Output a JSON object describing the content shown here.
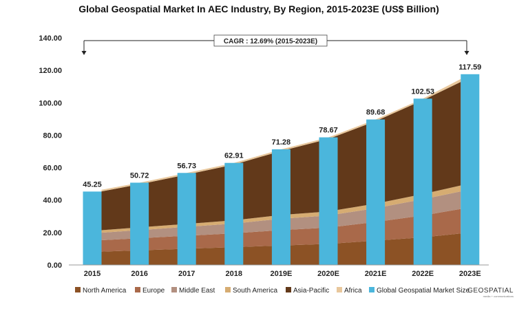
{
  "title": "Global Geospatial Market In AEC Industry, By Region, 2015-2023E (US$ Billion)",
  "cagr_label": "CAGR : 12.69% (2015-2023E)",
  "logo": {
    "main": "GEOSPATIAL",
    "sub": "media + communications"
  },
  "colors": {
    "north_america": "#8c5225",
    "europe": "#a9694a",
    "middle_east": "#b29080",
    "south_america": "#d6ac72",
    "asia_pacific": "#62391a",
    "africa": "#e8c79c",
    "bar": "#4bb6dc"
  },
  "chart_data": {
    "type": "bar+stacked-area",
    "categories": [
      "2015",
      "2016",
      "2017",
      "2018",
      "2019E",
      "2020E",
      "2021E",
      "2022E",
      "2023E"
    ],
    "ylim": [
      0,
      140
    ],
    "yticks": [
      "0.00",
      "20.00",
      "40.00",
      "60.00",
      "80.00",
      "100.00",
      "120.00",
      "140.00"
    ],
    "bar_series": {
      "name": "Global Geospatial Market Size",
      "values": [
        45.25,
        50.72,
        56.73,
        62.91,
        71.28,
        78.67,
        89.68,
        102.53,
        117.59
      ],
      "labels": [
        "45.25",
        "50.72",
        "56.73",
        "62.91",
        "71.28",
        "78.67",
        "89.68",
        "102.53",
        "117.59"
      ]
    },
    "area_series": [
      {
        "name": "North America",
        "color_key": "north_america",
        "values": [
          8,
          9,
          10,
          11,
          12,
          13,
          15,
          17,
          20
        ]
      },
      {
        "name": "Europe",
        "color_key": "europe",
        "values": [
          7,
          7.5,
          8,
          8.5,
          9.5,
          10,
          11.5,
          13.5,
          15.5
        ]
      },
      {
        "name": "Middle East",
        "color_key": "middle_east",
        "values": [
          4.5,
          5,
          5.5,
          6,
          7,
          7.5,
          8.5,
          10,
          11
        ]
      },
      {
        "name": "South America",
        "color_key": "south_america",
        "values": [
          1.5,
          1.7,
          1.8,
          2,
          2.3,
          2.5,
          2.8,
          3.2,
          3.8
        ]
      },
      {
        "name": "Asia-Pacific",
        "color_key": "asia_pacific",
        "values": [
          23.25,
          26.52,
          30.43,
          34.41,
          39.48,
          44.67,
          50.88,
          57.83,
          65.29
        ]
      },
      {
        "name": "Africa",
        "color_key": "africa",
        "values": [
          1,
          1,
          1,
          1,
          1,
          1,
          1,
          1,
          2
        ]
      }
    ],
    "legend": [
      {
        "label": "North America",
        "color_key": "north_america"
      },
      {
        "label": "Europe",
        "color_key": "europe"
      },
      {
        "label": "Middle East",
        "color_key": "middle_east"
      },
      {
        "label": "South America",
        "color_key": "south_america"
      },
      {
        "label": "Asia-Pacific",
        "color_key": "asia_pacific"
      },
      {
        "label": "Africa",
        "color_key": "africa"
      },
      {
        "label": "Global Geospatial Market Size",
        "color_key": "bar"
      }
    ],
    "legend_position": "bottom",
    "grid": false
  }
}
